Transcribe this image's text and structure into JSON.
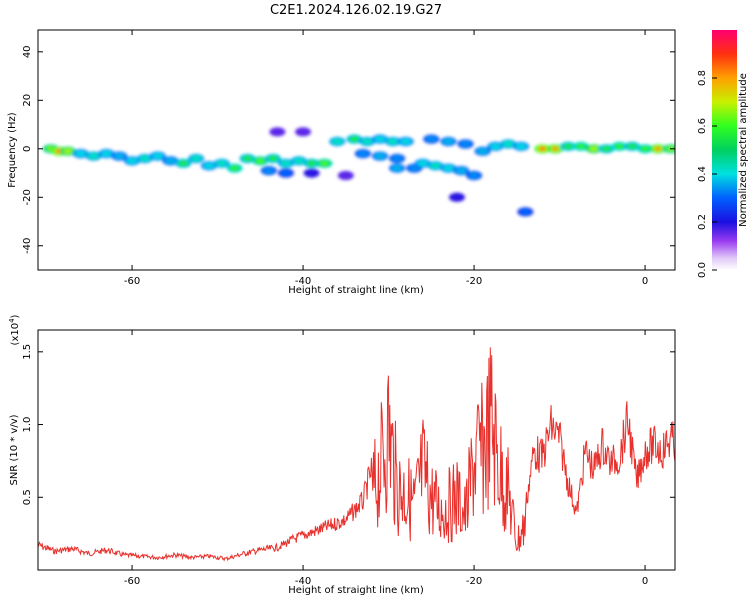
{
  "title": "C2E1.2024.126.02.19.G27",
  "chart_data": [
    {
      "type": "heatmap",
      "xlabel": "Height of straight line (km)",
      "ylabel": "Frequency (Hz)",
      "xlim": [
        -71,
        3.5
      ],
      "ylim": [
        -50,
        49
      ],
      "xticks": [
        -60,
        -40,
        -20,
        0
      ],
      "xtick_labels": [
        "-60",
        "-40",
        "-20",
        "0"
      ],
      "yticks": [
        -40,
        -20,
        0,
        20,
        40
      ],
      "ytick_labels": [
        "-40",
        "-20",
        "0",
        "20",
        "40"
      ],
      "colorbar": {
        "label": "Normalized spectral amplitude",
        "range": [
          0,
          1
        ],
        "ticks": [
          0,
          0.2,
          0.4,
          0.6,
          0.8
        ],
        "tick_labels": [
          "0.0",
          "0.2",
          "0.4",
          "0.6",
          "0.8"
        ],
        "colormap": "rainbow"
      },
      "blobs": [
        {
          "x": -69.5,
          "y": 0,
          "amp": 0.7
        },
        {
          "x": -68.5,
          "y": -1,
          "amp": 0.9
        },
        {
          "x": -67.5,
          "y": -1,
          "amp": 0.75
        },
        {
          "x": -66,
          "y": -2,
          "amp": 0.45
        },
        {
          "x": -64.5,
          "y": -3,
          "amp": 0.5
        },
        {
          "x": -63,
          "y": -2,
          "amp": 0.45
        },
        {
          "x": -61.5,
          "y": -3,
          "amp": 0.4
        },
        {
          "x": -60,
          "y": -5,
          "amp": 0.45
        },
        {
          "x": -58.5,
          "y": -4,
          "amp": 0.5
        },
        {
          "x": -57,
          "y": -3,
          "amp": 0.45
        },
        {
          "x": -55.5,
          "y": -5,
          "amp": 0.4
        },
        {
          "x": -54,
          "y": -6,
          "amp": 0.55
        },
        {
          "x": -52.5,
          "y": -4,
          "amp": 0.5
        },
        {
          "x": -51,
          "y": -7,
          "amp": 0.45
        },
        {
          "x": -49.5,
          "y": -6,
          "amp": 0.5
        },
        {
          "x": -48,
          "y": -8,
          "amp": 0.6
        },
        {
          "x": -46.5,
          "y": -4,
          "amp": 0.55
        },
        {
          "x": -45,
          "y": -5,
          "amp": 0.65
        },
        {
          "x": -43.5,
          "y": -4,
          "amp": 0.55
        },
        {
          "x": -42,
          "y": -6,
          "amp": 0.5
        },
        {
          "x": -40.5,
          "y": -5,
          "amp": 0.5
        },
        {
          "x": -39,
          "y": -6,
          "amp": 0.55
        },
        {
          "x": -37.5,
          "y": -6,
          "amp": 0.65
        },
        {
          "x": -44,
          "y": -9,
          "amp": 0.35
        },
        {
          "x": -42,
          "y": -10,
          "amp": 0.3
        },
        {
          "x": -39,
          "y": -10,
          "amp": 0.25
        },
        {
          "x": -35,
          "y": -11,
          "amp": 0.2
        },
        {
          "x": -43,
          "y": 7,
          "amp": 0.2
        },
        {
          "x": -40,
          "y": 7,
          "amp": 0.2
        },
        {
          "x": -36,
          "y": 3,
          "amp": 0.5
        },
        {
          "x": -34,
          "y": 4,
          "amp": 0.55
        },
        {
          "x": -32.5,
          "y": 3,
          "amp": 0.5
        },
        {
          "x": -31,
          "y": 4,
          "amp": 0.45
        },
        {
          "x": -29.5,
          "y": 3,
          "amp": 0.5
        },
        {
          "x": -28,
          "y": 3,
          "amp": 0.45
        },
        {
          "x": -33,
          "y": -2,
          "amp": 0.35
        },
        {
          "x": -31,
          "y": -3,
          "amp": 0.4
        },
        {
          "x": -29,
          "y": -4,
          "amp": 0.35
        },
        {
          "x": -29,
          "y": -8,
          "amp": 0.4
        },
        {
          "x": -27,
          "y": -8,
          "amp": 0.35
        },
        {
          "x": -26,
          "y": -6,
          "amp": 0.45
        },
        {
          "x": -24.5,
          "y": -7,
          "amp": 0.5
        },
        {
          "x": -23,
          "y": -8,
          "amp": 0.45
        },
        {
          "x": -21.5,
          "y": -9,
          "amp": 0.4
        },
        {
          "x": -20,
          "y": -11,
          "amp": 0.35
        },
        {
          "x": -22,
          "y": -20,
          "amp": 0.25
        },
        {
          "x": -14,
          "y": -26,
          "amp": 0.3
        },
        {
          "x": -25,
          "y": 4,
          "amp": 0.35
        },
        {
          "x": -23,
          "y": 3,
          "amp": 0.4
        },
        {
          "x": -21,
          "y": 2,
          "amp": 0.35
        },
        {
          "x": -19,
          "y": -1,
          "amp": 0.4
        },
        {
          "x": -17.5,
          "y": 1,
          "amp": 0.45
        },
        {
          "x": -16,
          "y": 2,
          "amp": 0.5
        },
        {
          "x": -14.5,
          "y": 1,
          "amp": 0.45
        },
        {
          "x": -12,
          "y": 0,
          "amp": 0.9
        },
        {
          "x": -10.5,
          "y": 0,
          "amp": 0.85
        },
        {
          "x": -9,
          "y": 1,
          "amp": 0.55
        },
        {
          "x": -7.5,
          "y": 1,
          "amp": 0.6
        },
        {
          "x": -6,
          "y": 0,
          "amp": 0.75
        },
        {
          "x": -4.5,
          "y": 0,
          "amp": 0.55
        },
        {
          "x": -3,
          "y": 1,
          "amp": 0.6
        },
        {
          "x": -1.5,
          "y": 1,
          "amp": 0.55
        },
        {
          "x": 0,
          "y": 0,
          "amp": 0.6
        },
        {
          "x": 1.5,
          "y": 0,
          "amp": 0.85
        },
        {
          "x": 3,
          "y": 0,
          "amp": 0.7
        }
      ]
    },
    {
      "type": "line",
      "xlabel": "Height of straight line (km)",
      "ylabel": "SNR (10 * v/v)",
      "scale_label": "(x10",
      "scale_exponent": "4",
      "scale_label_end": ")",
      "xlim": [
        -71,
        3.5
      ],
      "ylim": [
        0,
        16500
      ],
      "xticks": [
        -60,
        -40,
        -20,
        0
      ],
      "xtick_labels": [
        "-60",
        "-40",
        "-20",
        "0"
      ],
      "yticks": [
        5000,
        10000,
        15000
      ],
      "ytick_labels": [
        "0.5",
        "1.0",
        "1.5"
      ],
      "color": "#e8312c",
      "series": [
        {
          "x": [
            -71,
            -69,
            -67,
            -65,
            -63,
            -61,
            -59,
            -57,
            -55,
            -53,
            -51,
            -49,
            -47,
            -45,
            -43,
            -41,
            -39,
            -37,
            -35,
            -33,
            -32,
            -31,
            -30,
            -29,
            -28,
            -27,
            -26,
            -25,
            -24,
            -23,
            -22,
            -21,
            -20,
            -19,
            -18,
            -17,
            -16,
            -15,
            -14,
            -13,
            -12,
            -11,
            -10,
            -9,
            -8,
            -7,
            -6,
            -5,
            -4,
            -3,
            -2,
            -1,
            0,
            1,
            2,
            3,
            3.5
          ],
          "y": [
            2000,
            1500,
            1700,
            1300,
            1600,
            1200,
            1100,
            1000,
            1200,
            1000,
            1100,
            900,
            1300,
            1600,
            1800,
            2500,
            3000,
            3500,
            4000,
            5500,
            8000,
            11000,
            15500,
            9000,
            8500,
            7000,
            11000,
            8000,
            6500,
            7000,
            8000,
            6000,
            12000,
            13000,
            16500,
            11000,
            8500,
            3000,
            5000,
            9500,
            9000,
            11500,
            10500,
            7000,
            4500,
            9500,
            8000,
            10000,
            8500,
            9000,
            12000,
            7000,
            9500,
            10000,
            9500,
            10500,
            10000
          ]
        }
      ]
    }
  ]
}
